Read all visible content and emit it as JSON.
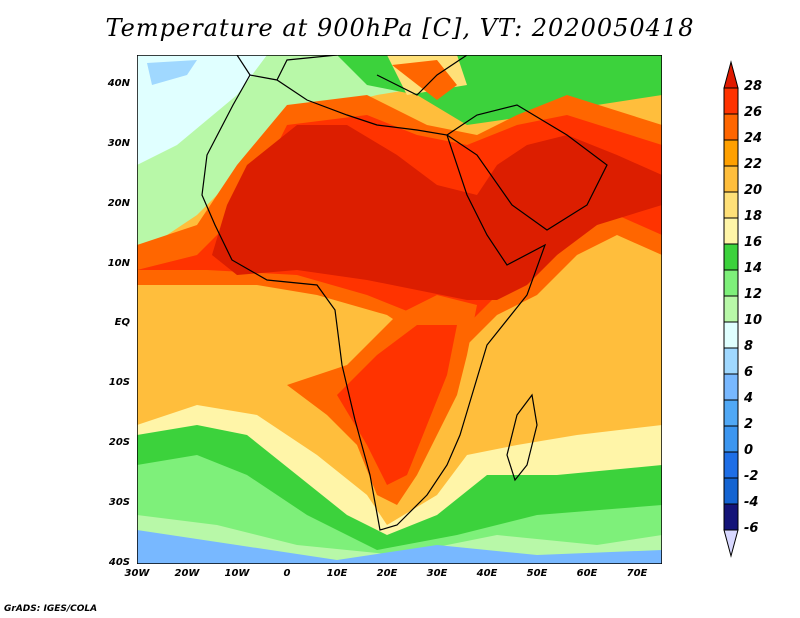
{
  "title": "Temperature at 900hPa [C], VT: 2020050418",
  "footer": "GrADS: IGES/COLA",
  "map": {
    "lon_range": [
      -30,
      75
    ],
    "lat_range": [
      -40,
      45
    ],
    "lat_labels": [
      {
        "v": 40,
        "t": "40N"
      },
      {
        "v": 30,
        "t": "30N"
      },
      {
        "v": 20,
        "t": "20N"
      },
      {
        "v": 10,
        "t": "10N"
      },
      {
        "v": 0,
        "t": "EQ"
      },
      {
        "v": -10,
        "t": "10S"
      },
      {
        "v": -20,
        "t": "20S"
      },
      {
        "v": -30,
        "t": "30S"
      },
      {
        "v": -40,
        "t": "40S"
      }
    ],
    "lon_labels": [
      {
        "v": -30,
        "t": "30W"
      },
      {
        "v": -20,
        "t": "20W"
      },
      {
        "v": -10,
        "t": "10W"
      },
      {
        "v": 0,
        "t": "0"
      },
      {
        "v": 10,
        "t": "10E"
      },
      {
        "v": 20,
        "t": "20E"
      },
      {
        "v": 30,
        "t": "30E"
      },
      {
        "v": 40,
        "t": "40E"
      },
      {
        "v": 50,
        "t": "50E"
      },
      {
        "v": 60,
        "t": "60E"
      },
      {
        "v": 70,
        "t": "70E"
      }
    ]
  },
  "colorbar": {
    "labels": [
      "28",
      "26",
      "24",
      "22",
      "20",
      "18",
      "16",
      "14",
      "12",
      "10",
      "8",
      "6",
      "4",
      "2",
      "0",
      "-2",
      "-4",
      "-6"
    ],
    "colors": [
      "#ff3300",
      "#ff6600",
      "#ffa000",
      "#ffbe3c",
      "#ffe078",
      "#fff5a8",
      "#3cd23c",
      "#7ef07a",
      "#b8f8a8",
      "#e0ffff",
      "#a0d8ff",
      "#78b8ff",
      "#50a8f5",
      "#3c96f0",
      "#1e6ee6",
      "#1464d2",
      "#141478"
    ],
    "top_arrow": "#e01a00",
    "bottom_arrow": "#d8d8ff"
  }
}
